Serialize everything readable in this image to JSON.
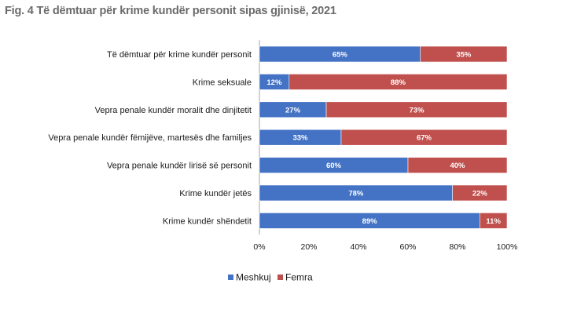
{
  "title": "Fig. 4 Të dëmtuar për krime kundër personit sipas gjinisë, 2021",
  "chart_data": {
    "type": "bar",
    "orientation": "horizontal",
    "stacked": true,
    "percent": true,
    "categories": [
      "Të dëmtuar për krime kundër personit",
      "Krime seksuale",
      "Vepra penale kundër moralit dhe dinjitetit",
      "Vepra penale kundër fëmijëve, martesës dhe familjes",
      "Vepra penale kundër lirisë së personit",
      "Krime kundër jetës",
      "Krime kundër shëndetit"
    ],
    "series": [
      {
        "name": "Meshkuj",
        "color": "#4472c4",
        "values": [
          65,
          12,
          27,
          33,
          60,
          78,
          89
        ]
      },
      {
        "name": "Femra",
        "color": "#c0504d",
        "values": [
          35,
          88,
          73,
          67,
          40,
          22,
          11
        ]
      }
    ],
    "xlim": [
      0,
      100
    ],
    "xticks": [
      "0%",
      "20%",
      "40%",
      "60%",
      "80%",
      "100%"
    ],
    "gridlines": false,
    "legend": "bottom"
  }
}
